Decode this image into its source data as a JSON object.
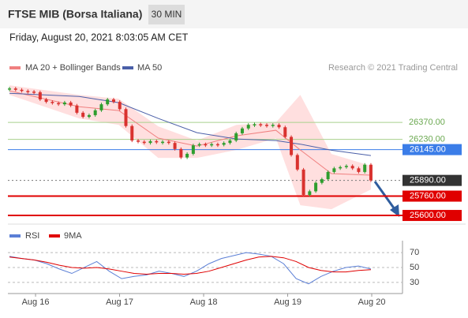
{
  "header": {
    "title": "FTSE MIB (Borsa Italiana)",
    "timeframe": "30 MIN",
    "datetime": "Friday, August 20, 2021 8:03:05 AM CET"
  },
  "chart_data": [
    {
      "type": "candlestick",
      "source": "Research © 2021 Trading Central",
      "up_color": "#2e9e2e",
      "down_color": "#d9322f",
      "closes": [
        26651,
        26640,
        26630,
        26625,
        26620,
        26560,
        26540,
        26530,
        26520,
        26535,
        26510,
        26450,
        26416,
        26430,
        26470,
        26520,
        26560,
        26540,
        26480,
        26340,
        26220,
        26210,
        26200,
        26215,
        26205,
        26210,
        26200,
        26150,
        26080,
        26110,
        26180,
        26190,
        26180,
        26190,
        26185,
        26200,
        26220,
        26280,
        26320,
        26350,
        26355,
        26350,
        26345,
        26350,
        26330,
        26250,
        26100,
        25980,
        25770,
        25800,
        25870,
        25900,
        25960,
        25990,
        26000,
        26010,
        25990,
        25960,
        26020,
        25890
      ],
      "x": [
        -0.31,
        0.52,
        0.99,
        1.46,
        1.92,
        2.39,
        2.86,
        3.15,
        3.52,
        3.99
      ],
      "series": [
        {
          "name": "MA 20 + Bollinger Bands",
          "color": "#f08080",
          "band_color": "#ffc4c4",
          "values": [
            26631,
            26500,
            26468,
            26240,
            26174,
            26259,
            26305,
            26142,
            25946,
            25933
          ],
          "upper": [
            26677,
            26598,
            26566,
            26337,
            26220,
            26350,
            26370,
            26598,
            26109,
            26011
          ],
          "lower": [
            26598,
            26403,
            26350,
            26076,
            26076,
            26142,
            26239,
            25685,
            25652,
            25815
          ]
        },
        {
          "name": "MA 50",
          "color": "#4a5fa8",
          "values": [
            26611,
            26585,
            26533,
            26403,
            26285,
            26233,
            26220,
            26190,
            26140,
            26096
          ]
        }
      ],
      "levels": [
        {
          "value": 26370,
          "label": "26370.00",
          "color": "#a8d08d",
          "style": "text"
        },
        {
          "value": 26230,
          "label": "26230.00",
          "color": "#a8d08d",
          "style": "text"
        },
        {
          "value": 26145,
          "label": "26145.00",
          "color": "#3b7de8",
          "style": "box"
        },
        {
          "value": 25890,
          "label": "25890.00",
          "color": "#333333",
          "style": "dotted"
        },
        {
          "value": 25760,
          "label": "25760.00",
          "color": "#e00000",
          "style": "box"
        },
        {
          "value": 25600,
          "label": "25600.00",
          "color": "#e00000",
          "style": "box"
        }
      ],
      "xlim": [
        -0.329,
        4.366
      ],
      "xticks": [
        {
          "value": 0,
          "label": "Aug 16"
        },
        {
          "value": 1,
          "label": "Aug 17"
        },
        {
          "value": 2,
          "label": "Aug 18"
        },
        {
          "value": 3,
          "label": "Aug 19"
        },
        {
          "value": 4,
          "label": "Aug 20"
        }
      ],
      "ylim": [
        25535,
        26730
      ]
    },
    {
      "type": "line",
      "series": [
        {
          "name": "RSI",
          "color": "#5b7fd6",
          "values": [
            65,
            62,
            60,
            55,
            48,
            42,
            50,
            58,
            45,
            35,
            38,
            40,
            45,
            42,
            38,
            45,
            55,
            62,
            66,
            70,
            68,
            65,
            55,
            35,
            28,
            38,
            45,
            50,
            52,
            48
          ]
        },
        {
          "name": "9MA",
          "color": "#e00000",
          "values": [
            64,
            62,
            60,
            57,
            53,
            50,
            49,
            50,
            48,
            45,
            42,
            41,
            42,
            42,
            41,
            42,
            45,
            50,
            55,
            60,
            64,
            65,
            63,
            58,
            50,
            46,
            44,
            44,
            46,
            47
          ]
        }
      ],
      "ylim": [
        15,
        86
      ],
      "yticks": [
        30,
        50,
        70
      ]
    }
  ]
}
